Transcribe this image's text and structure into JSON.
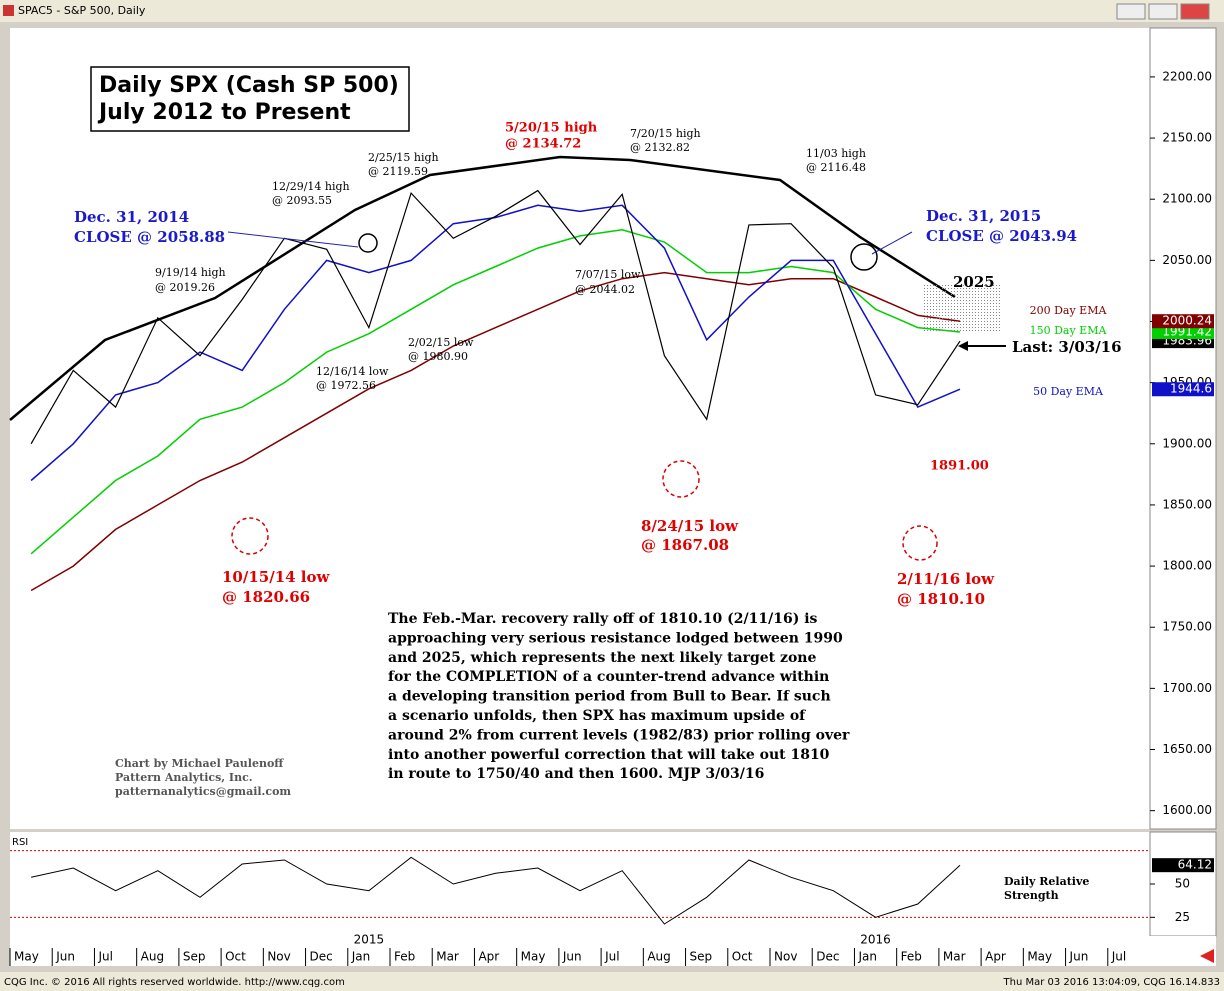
{
  "window": {
    "title": "SPAC5 - S&P 500, Daily"
  },
  "footer": {
    "left": "CQG Inc. © 2016 All rights reserved worldwide. http://www.cqg.com",
    "right": "Thu Mar 03 2016 13:04:09, CQG 16.14.833"
  },
  "chart_data": {
    "type": "line",
    "title": "Daily SPX (Cash SP 500)",
    "subtitle": "July 2012 to Present",
    "categories": [
      "May",
      "Jun",
      "Jul",
      "Aug",
      "Sep",
      "Oct",
      "Nov",
      "Dec",
      "Jan",
      "Feb",
      "Mar",
      "Apr",
      "May",
      "Jun",
      "Jul",
      "Aug",
      "Sep",
      "Oct",
      "Nov",
      "Dec",
      "Jan",
      "Feb",
      "Mar",
      "Apr",
      "May",
      "Jun",
      "Jul"
    ],
    "year_labels": [
      {
        "value": 8,
        "label": "2015"
      },
      {
        "value": 20,
        "label": "2016"
      }
    ],
    "series": [
      {
        "name": "S&P 500",
        "color": "#000000",
        "values": [
          1900,
          1960,
          1930,
          2003,
          1972,
          2018,
          2068,
          2059,
          1995,
          2105,
          2068,
          2086,
          2107,
          2063,
          2104,
          1972,
          1920,
          2079,
          2080,
          2044,
          1940,
          1932,
          1983.96,
          null,
          null,
          null,
          null
        ]
      },
      {
        "name": "50 Day EMA",
        "color": "#1010c8",
        "values": [
          1870,
          1900,
          1940,
          1950,
          1975,
          1960,
          2010,
          2050,
          2040,
          2050,
          2080,
          2085,
          2095,
          2090,
          2095,
          2060,
          1985,
          2020,
          2050,
          2050,
          1990,
          1930,
          1944.6,
          null,
          null,
          null,
          null
        ]
      },
      {
        "name": "150 Day EMA",
        "color": "#00d000",
        "values": [
          1810,
          1840,
          1870,
          1890,
          1920,
          1930,
          1950,
          1975,
          1990,
          2010,
          2030,
          2045,
          2060,
          2070,
          2075,
          2065,
          2040,
          2040,
          2045,
          2040,
          2010,
          1995,
          1991.42,
          null,
          null,
          null,
          null
        ]
      },
      {
        "name": "200 Day EMA",
        "color": "#800000",
        "values": [
          1780,
          1800,
          1830,
          1850,
          1870,
          1885,
          1905,
          1925,
          1945,
          1960,
          1980,
          1995,
          2010,
          2025,
          2035,
          2040,
          2035,
          2030,
          2035,
          2035,
          2020,
          2005,
          2000.24,
          null,
          null,
          null,
          null
        ]
      }
    ],
    "ylim": [
      1585,
      2240
    ],
    "yticks": [
      {
        "value": 1600,
        "label": "1600.00"
      },
      {
        "value": 1650,
        "label": "1650.00"
      },
      {
        "value": 1700,
        "label": "1700.00"
      },
      {
        "value": 1750,
        "label": "1750.00"
      },
      {
        "value": 1800,
        "label": "1800.00"
      },
      {
        "value": 1850,
        "label": "1850.00"
      },
      {
        "value": 1900,
        "label": "1900.00"
      },
      {
        "value": 1950,
        "label": "1950.00"
      },
      {
        "value": 2000,
        "label": "2000.00"
      },
      {
        "value": 2050,
        "label": "2050.00"
      },
      {
        "value": 2100,
        "label": "2100.00"
      },
      {
        "value": 2150,
        "label": "2150.00"
      },
      {
        "value": 2200,
        "label": "2200.00"
      }
    ],
    "rsi": {
      "name": "RSI",
      "label": [
        "Daily Relative",
        "Strength"
      ],
      "color": "#000000",
      "values": [
        55,
        62,
        45,
        60,
        40,
        65,
        68,
        50,
        45,
        70,
        50,
        58,
        62,
        45,
        60,
        20,
        40,
        68,
        55,
        45,
        25,
        35,
        64.12,
        null,
        null,
        null,
        null
      ],
      "ylim": [
        11,
        89
      ],
      "yticks": [
        25,
        50
      ]
    },
    "annotations": [
      "5/20/15 high",
      "@ 2134.72",
      "7/20/15 high",
      "@ 2132.82",
      "2/25/15 high",
      "@ 2119.59",
      "11/03 high",
      "@ 2116.48",
      "12/29/14 high",
      "@ 2093.55",
      "Dec. 31, 2014",
      "CLOSE @ 2058.88",
      "Dec. 31, 2015",
      "CLOSE @ 2043.94",
      "9/19/14 high",
      "@ 2019.26",
      "7/07/15 low",
      "@ 2044.02",
      "2025",
      "2/02/15 low",
      "@ 1980.90",
      "12/16/14 low",
      "@ 1972.56",
      "Last: 3/03/16",
      "1891.00",
      "8/24/15 low",
      "@ 1867.08",
      "10/15/14 low",
      "@ 1820.66",
      "2/11/16 low",
      "@ 1810.10"
    ],
    "commentary": [
      "The Feb.-Mar. recovery rally off of 1810.10 (2/11/16) is",
      "approaching very serious resistance lodged between 1990",
      "and 2025, which represents the next likely target zone",
      "for the COMPLETION of a counter-trend advance within",
      "a developing transition period from Bull to Bear. If such",
      "a scenario unfolds, then SPX has maximum upside of",
      "around 2% from current levels (1982/83) prior rolling over",
      "into another powerful correction that will take out 1810",
      "in route to 1750/40 and then 1600.  MJP 3/03/16"
    ],
    "credits": [
      "Chart by Michael Paulenoff",
      "Pattern Analytics, Inc.",
      "patternanalytics@gmail.com"
    ]
  }
}
